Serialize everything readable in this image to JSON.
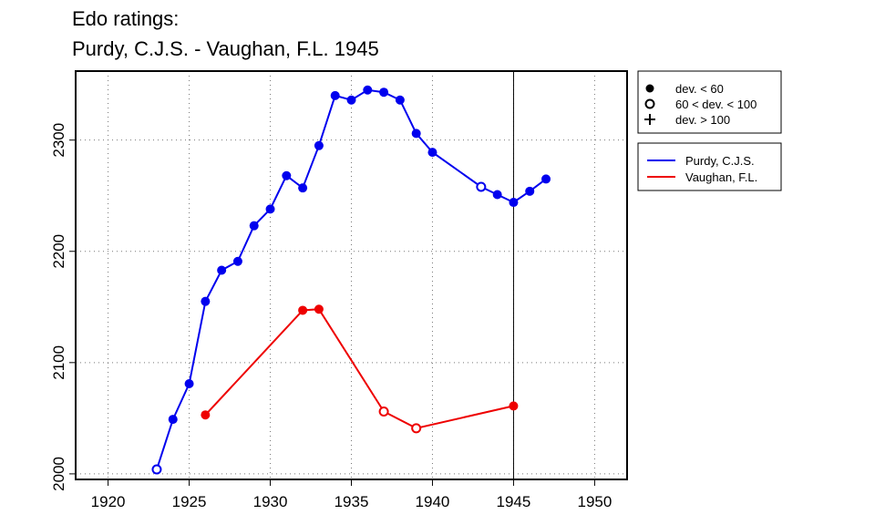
{
  "chart_data": {
    "type": "line",
    "title_lines": [
      "Edo ratings:",
      "Purdy, C.J.S. - Vaughan, F.L. 1945"
    ],
    "xlabel": "",
    "ylabel": "",
    "xlim": [
      1918,
      1952
    ],
    "ylim": [
      1995,
      2362
    ],
    "x_ticks": [
      1920,
      1925,
      1930,
      1935,
      1940,
      1945,
      1950
    ],
    "y_ticks": [
      2000,
      2100,
      2200,
      2300
    ],
    "grid": "dotted",
    "reference_year": 1945,
    "marker_legend": [
      {
        "symbol": "filled-circle",
        "label": "dev. < 60"
      },
      {
        "symbol": "open-circle",
        "label": "60 < dev. < 100"
      },
      {
        "symbol": "plus",
        "label": "dev. > 100"
      }
    ],
    "series": [
      {
        "name": "Purdy, C.J.S.",
        "color": "#0000ee",
        "points": [
          {
            "x": 1923,
            "y": 2004,
            "marker": "open"
          },
          {
            "x": 1924,
            "y": 2049,
            "marker": "filled"
          },
          {
            "x": 1925,
            "y": 2081,
            "marker": "filled"
          },
          {
            "x": 1926,
            "y": 2155,
            "marker": "filled"
          },
          {
            "x": 1927,
            "y": 2183,
            "marker": "filled"
          },
          {
            "x": 1928,
            "y": 2191,
            "marker": "filled"
          },
          {
            "x": 1929,
            "y": 2223,
            "marker": "filled"
          },
          {
            "x": 1930,
            "y": 2238,
            "marker": "filled"
          },
          {
            "x": 1931,
            "y": 2268,
            "marker": "filled"
          },
          {
            "x": 1932,
            "y": 2257,
            "marker": "filled"
          },
          {
            "x": 1933,
            "y": 2295,
            "marker": "filled"
          },
          {
            "x": 1934,
            "y": 2340,
            "marker": "filled"
          },
          {
            "x": 1935,
            "y": 2336,
            "marker": "filled"
          },
          {
            "x": 1936,
            "y": 2345,
            "marker": "filled"
          },
          {
            "x": 1937,
            "y": 2343,
            "marker": "filled"
          },
          {
            "x": 1938,
            "y": 2336,
            "marker": "filled"
          },
          {
            "x": 1939,
            "y": 2306,
            "marker": "filled"
          },
          {
            "x": 1940,
            "y": 2289,
            "marker": "filled"
          },
          {
            "x": 1943,
            "y": 2258,
            "marker": "open"
          },
          {
            "x": 1944,
            "y": 2251,
            "marker": "filled"
          },
          {
            "x": 1945,
            "y": 2244,
            "marker": "filled"
          },
          {
            "x": 1946,
            "y": 2254,
            "marker": "filled"
          },
          {
            "x": 1947,
            "y": 2265,
            "marker": "filled"
          }
        ]
      },
      {
        "name": "Vaughan, F.L.",
        "color": "#ee0000",
        "points": [
          {
            "x": 1926,
            "y": 2053,
            "marker": "filled"
          },
          {
            "x": 1932,
            "y": 2147,
            "marker": "filled"
          },
          {
            "x": 1933,
            "y": 2148,
            "marker": "filled"
          },
          {
            "x": 1937,
            "y": 2056,
            "marker": "open"
          },
          {
            "x": 1939,
            "y": 2041,
            "marker": "open"
          },
          {
            "x": 1945,
            "y": 2061,
            "marker": "filled"
          }
        ]
      }
    ]
  }
}
